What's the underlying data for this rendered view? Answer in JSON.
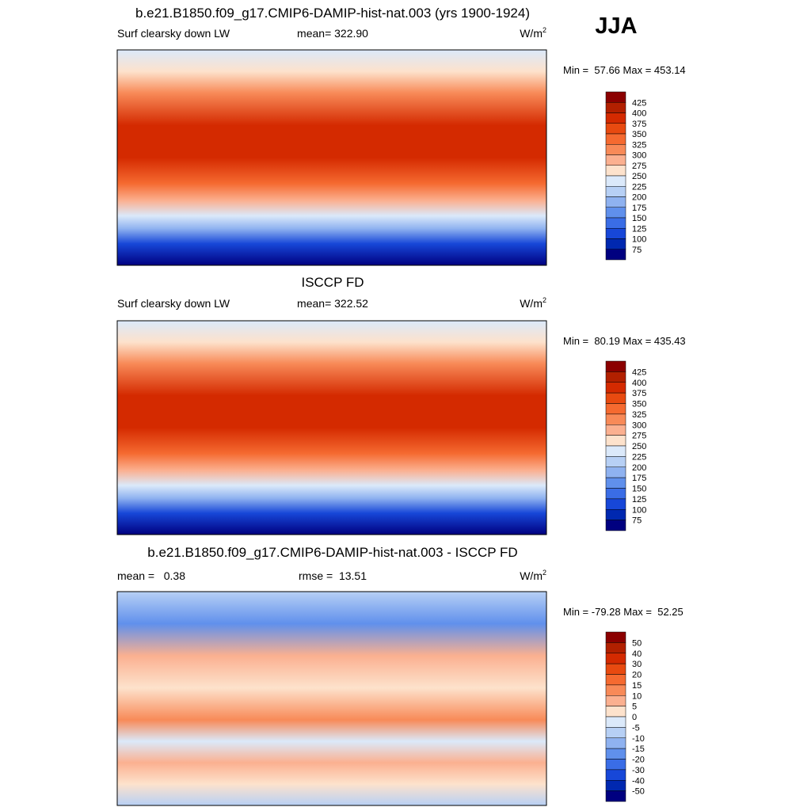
{
  "season": "JJA",
  "panels": [
    {
      "title": "b.e21.B1850.f09_g17.CMIP6-DAMIP-hist-nat.003 (yrs 1900-1924)",
      "left": "Surf clearsky down LW",
      "center": "mean= 322.90",
      "units": "W/m",
      "units_exponent": "2",
      "range": "Min =  57.66 Max = 453.14",
      "colorbar": {
        "labels": [
          "425",
          "400",
          "375",
          "350",
          "325",
          "300",
          "275",
          "250",
          "225",
          "200",
          "175",
          "150",
          "125",
          "100",
          "75"
        ],
        "colors": [
          "#8b0000",
          "#b22000",
          "#d42a00",
          "#e84a10",
          "#f56a30",
          "#f88a58",
          "#fbb090",
          "#fde2cc",
          "#dbe9fa",
          "#b7d0f5",
          "#8fb2f0",
          "#6090ec",
          "#3a6de6",
          "#1747d8",
          "#0028b0",
          "#000080"
        ]
      }
    },
    {
      "title": "ISCCP FD",
      "left": "Surf clearsky down LW",
      "center": "mean= 322.52",
      "units": "W/m",
      "units_exponent": "2",
      "range": "Min =  80.19 Max = 435.43",
      "colorbar": {
        "labels": [
          "425",
          "400",
          "375",
          "350",
          "325",
          "300",
          "275",
          "250",
          "225",
          "200",
          "175",
          "150",
          "125",
          "100",
          "75"
        ],
        "colors": [
          "#8b0000",
          "#b22000",
          "#d42a00",
          "#e84a10",
          "#f56a30",
          "#f88a58",
          "#fbb090",
          "#fde2cc",
          "#dbe9fa",
          "#b7d0f5",
          "#8fb2f0",
          "#6090ec",
          "#3a6de6",
          "#1747d8",
          "#0028b0",
          "#000080"
        ]
      }
    },
    {
      "title": "b.e21.B1850.f09_g17.CMIP6-DAMIP-hist-nat.003 - ISCCP FD",
      "left": "mean =   0.38",
      "center": "rmse =  13.51",
      "units": "W/m",
      "units_exponent": "2",
      "range": "Min = -79.28 Max =  52.25",
      "colorbar": {
        "labels": [
          "50",
          "40",
          "30",
          "20",
          "15",
          "10",
          "5",
          "0",
          "-5",
          "-10",
          "-15",
          "-20",
          "-30",
          "-40",
          "-50"
        ],
        "colors": [
          "#8b0000",
          "#b22000",
          "#d42a00",
          "#e84a10",
          "#f56a30",
          "#f88a58",
          "#fbb090",
          "#fde2cc",
          "#dbe9fa",
          "#b7d0f5",
          "#8fb2f0",
          "#6090ec",
          "#3a6de6",
          "#1747d8",
          "#0028b0",
          "#000080"
        ]
      }
    }
  ]
}
